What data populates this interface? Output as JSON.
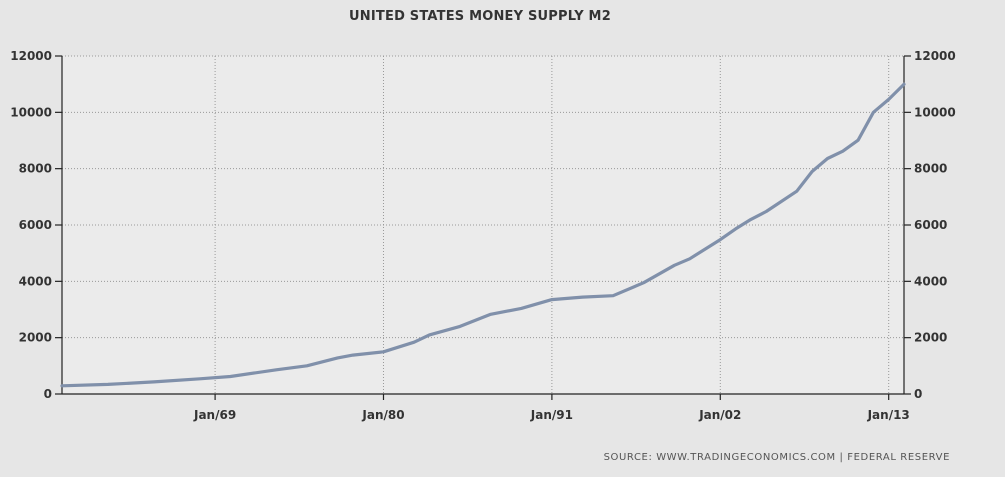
{
  "chart_data": {
    "type": "line",
    "title": "UNITED STATES MONEY SUPPLY M2",
    "source": "SOURCE:  WWW.TRADINGECONOMICS.COM  |  FEDERAL  RESERVE",
    "xlim": [
      1959.0,
      2014.0
    ],
    "ylim": [
      0,
      12000
    ],
    "yticks": [
      0,
      2000,
      4000,
      6000,
      8000,
      10000,
      12000
    ],
    "xticks": [
      {
        "year": 1969.0,
        "label": "Jan/69"
      },
      {
        "year": 1980.0,
        "label": "Jan/80"
      },
      {
        "year": 1991.0,
        "label": "Jan/91"
      },
      {
        "year": 2002.0,
        "label": "Jan/02"
      },
      {
        "year": 2013.0,
        "label": "Jan/13"
      }
    ],
    "grid": true,
    "line_color": "#8090aa",
    "series": [
      {
        "x": [
          1959,
          1962,
          1965,
          1968,
          1970,
          1973,
          1975,
          1977,
          1978,
          1980,
          1982,
          1983,
          1985,
          1987,
          1989,
          1991,
          1993,
          1995,
          1997,
          1999,
          2000,
          2002,
          2003,
          2004,
          2005,
          2007,
          2008,
          2009,
          2010,
          2011,
          2012,
          2013,
          2014
        ],
        "y": [
          290,
          340,
          430,
          540,
          620,
          860,
          1000,
          1280,
          1380,
          1500,
          1840,
          2100,
          2400,
          2830,
          3040,
          3350,
          3440,
          3490,
          3950,
          4570,
          4800,
          5480,
          5860,
          6200,
          6480,
          7200,
          7900,
          8360,
          8620,
          9010,
          10000,
          10460,
          11000
        ]
      }
    ]
  }
}
